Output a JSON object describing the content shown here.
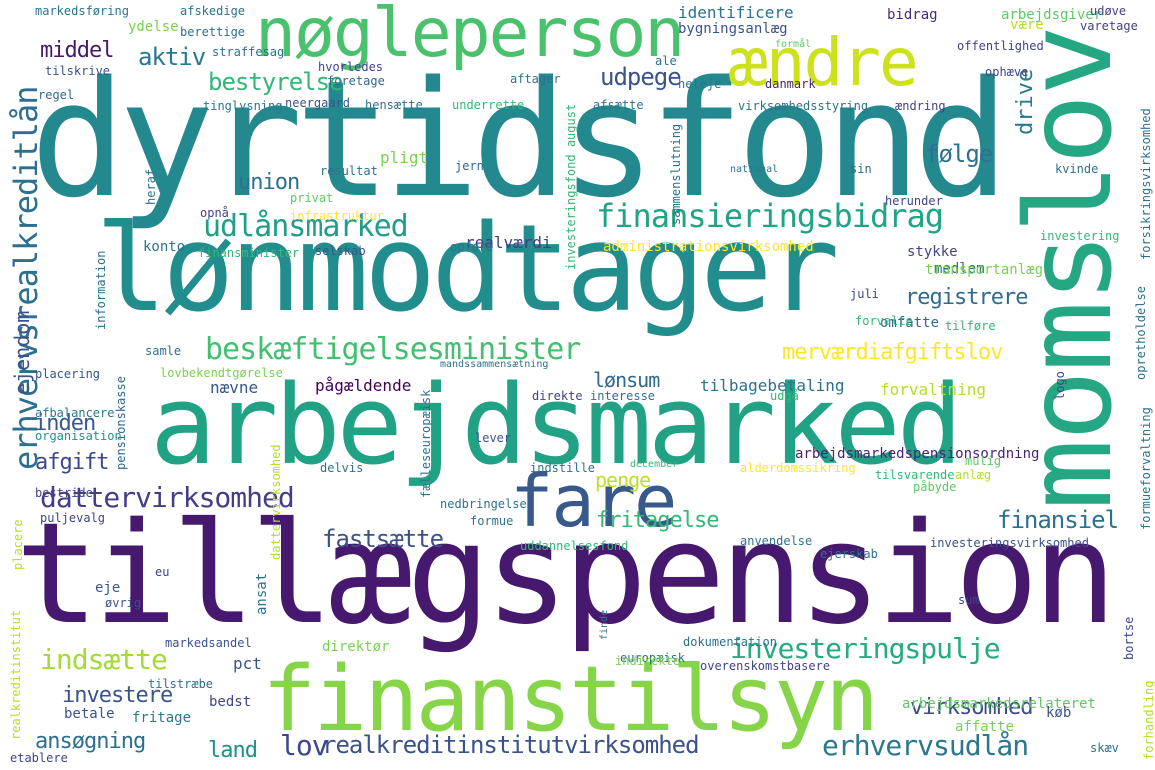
{
  "words": [
    {
      "text": "dyrtidsfond",
      "color": "#23898e"
    },
    {
      "text": "tillægspension",
      "color": "#46186e"
    },
    {
      "text": "lønmodtager",
      "color": "#228d8d"
    },
    {
      "text": "arbejdsmarked",
      "color": "#22a284"
    },
    {
      "text": "momslov",
      "color": "#26a784"
    },
    {
      "text": "finanstilsyn",
      "color": "#86d549"
    },
    {
      "text": "nøgleperson",
      "color": "#4ac16d"
    },
    {
      "text": "ændre",
      "color": "#cde11d"
    },
    {
      "text": "fare",
      "color": "#38598c"
    },
    {
      "text": "erhvervsrealkreditlån",
      "color": "#2d708e"
    },
    {
      "text": "finansieringsbidrag",
      "color": "#20a486"
    },
    {
      "text": "beskæftigelsesminister",
      "color": "#44bf70"
    },
    {
      "text": "dattervirksomhed",
      "color": "#433e85"
    },
    {
      "text": "investeringspulje",
      "color": "#25ab82"
    },
    {
      "text": "erhvervsudlån",
      "color": "#2a788e"
    },
    {
      "text": "udlånsmarked",
      "color": "#1f9e89"
    },
    {
      "text": "registrere",
      "color": "#2f6c8e"
    },
    {
      "text": "finansiel",
      "color": "#2c728e"
    },
    {
      "text": "indsætte",
      "color": "#a5db36"
    },
    {
      "text": "realkreditinstitutvirksomhed",
      "color": "#3b528b"
    },
    {
      "text": "fritagelse",
      "color": "#35b779"
    },
    {
      "text": "merværdiafgiftslov",
      "color": "#fde725"
    },
    {
      "text": "bestyrelse",
      "color": "#34b679"
    },
    {
      "text": "middel",
      "color": "#481a6c"
    },
    {
      "text": "aktiv",
      "color": "#2a788e"
    },
    {
      "text": "udpege",
      "color": "#3b528b"
    },
    {
      "text": "følge",
      "color": "#2c728e"
    },
    {
      "text": "union",
      "color": "#2c728e"
    },
    {
      "text": "afgift",
      "color": "#3e4989"
    },
    {
      "text": "fastsætte",
      "color": "#3b528b"
    },
    {
      "text": "investere",
      "color": "#39568c"
    },
    {
      "text": "ansøgning",
      "color": "#2d708e"
    },
    {
      "text": "land",
      "color": "#218f8d"
    },
    {
      "text": "lov",
      "color": "#3f4788"
    },
    {
      "text": "virksomhed",
      "color": "#3e4989"
    },
    {
      "text": "penge",
      "color": "#bddf26"
    },
    {
      "text": "lønsum",
      "color": "#31688e"
    },
    {
      "text": "inden",
      "color": "#38588c"
    },
    {
      "text": "ejendom",
      "color": "#3b528b"
    },
    {
      "text": "drive",
      "color": "#2a788e"
    },
    {
      "text": "identificere",
      "color": "#2c728e"
    },
    {
      "text": "bygningsanlæg",
      "color": "#3b528b"
    },
    {
      "text": "arbejdsmarkedspensionsordning",
      "color": "#482475"
    },
    {
      "text": "arbejdsmarkedsrelateret",
      "color": "#5ec962"
    },
    {
      "text": "pligt",
      "color": "#7ad151"
    },
    {
      "text": "realværdi",
      "color": "#433e85"
    },
    {
      "text": "konto",
      "color": "#2c728e"
    },
    {
      "text": "pct",
      "color": "#3b528b"
    },
    {
      "text": "eje",
      "color": "#38588c"
    },
    {
      "text": "nævne",
      "color": "#39568c"
    },
    {
      "text": "pågældende",
      "color": "#440154"
    },
    {
      "text": "tilbagebetaling",
      "color": "#2c728e"
    },
    {
      "text": "forvaltning",
      "color": "#b5de2b"
    },
    {
      "text": "omfatte",
      "color": "#31688e"
    },
    {
      "text": "stykke",
      "color": "#414487"
    },
    {
      "text": "medlem",
      "color": "#2c728e"
    },
    {
      "text": "transportanlæg",
      "color": "#7ad151"
    },
    {
      "text": "direktør",
      "color": "#7ad151"
    },
    {
      "text": "ansat",
      "color": "#2c728e"
    },
    {
      "text": "betale",
      "color": "#3b528b"
    },
    {
      "text": "fritage",
      "color": "#2a788e"
    },
    {
      "text": "bedst",
      "color": "#414487"
    },
    {
      "text": "dokumentation",
      "color": "#2c728e"
    },
    {
      "text": "overenskomstbasere",
      "color": "#414487"
    },
    {
      "text": "europæisk",
      "color": "#2c728e"
    },
    {
      "text": "affatte",
      "color": "#7ad151"
    },
    {
      "text": "køb",
      "color": "#3b528b"
    },
    {
      "text": "bidrag",
      "color": "#472c7a"
    },
    {
      "text": "arbejdsgiver",
      "color": "#5ec962"
    },
    {
      "text": "være",
      "color": "#b5de2b"
    },
    {
      "text": "regel",
      "color": "#31688e"
    },
    {
      "text": "tinglysning",
      "color": "#2a788e"
    },
    {
      "text": "ændring",
      "color": "#414487"
    },
    {
      "text": "information",
      "color": "#2c728e"
    },
    {
      "text": "pensionskasse",
      "color": "#31688e"
    },
    {
      "text": "organisation",
      "color": "#21918c"
    },
    {
      "text": "afbalancere",
      "color": "#2a788e"
    },
    {
      "text": "placering",
      "color": "#39568c"
    },
    {
      "text": "lovbekendtgørelse",
      "color": "#7ad151"
    },
    {
      "text": "hvorledes",
      "color": "#414487"
    },
    {
      "text": "straffesag",
      "color": "#2c728e"
    },
    {
      "text": "ydelse",
      "color": "#7ad151"
    },
    {
      "text": "markedsføring",
      "color": "#2c728e"
    },
    {
      "text": "afskedige",
      "color": "#2c728e"
    },
    {
      "text": "berettige",
      "color": "#2c728e"
    },
    {
      "text": "tilskrive",
      "color": "#3b528b"
    },
    {
      "text": "foretage",
      "color": "#31688e"
    },
    {
      "text": "aftager",
      "color": "#2c728e"
    },
    {
      "text": "heleje",
      "color": "#2c728e"
    },
    {
      "text": "danmark",
      "color": "#482475"
    },
    {
      "text": "neergaard",
      "color": "#3b528b"
    },
    {
      "text": "hensætte",
      "color": "#2c728e"
    },
    {
      "text": "underrette",
      "color": "#35b779"
    },
    {
      "text": "afsætte",
      "color": "#2c728e"
    },
    {
      "text": "virksomhedsstyring",
      "color": "#2c728e"
    },
    {
      "text": "ophæve",
      "color": "#414487"
    },
    {
      "text": "offentlighed",
      "color": "#414487"
    },
    {
      "text": "varetage",
      "color": "#414487"
    },
    {
      "text": "udøve",
      "color": "#414487"
    },
    {
      "text": "formål",
      "color": "#5ec962"
    },
    {
      "text": "ale",
      "color": "#2c728e"
    },
    {
      "text": "resultat",
      "color": "#2c728e"
    },
    {
      "text": "jern",
      "color": "#31688e"
    },
    {
      "text": "national",
      "color": "#2a788e"
    },
    {
      "text": "sin",
      "color": "#31688e"
    },
    {
      "text": "kvinde",
      "color": "#2c728e"
    },
    {
      "text": "privat",
      "color": "#5ec962"
    },
    {
      "text": "opnå",
      "color": "#414487"
    },
    {
      "text": "infrastruktur",
      "color": "#fde725"
    },
    {
      "text": "herunder",
      "color": "#414487"
    },
    {
      "text": "investering",
      "color": "#35b779"
    },
    {
      "text": "administrationsvirksomhed",
      "color": "#fde725"
    },
    {
      "text": "finansminister",
      "color": "#35b779"
    },
    {
      "text": "selskab",
      "color": "#3b528b"
    },
    {
      "text": "opføre",
      "color": "#2c728e"
    },
    {
      "text": "juli",
      "color": "#414487"
    },
    {
      "text": "forvalte",
      "color": "#35b779"
    },
    {
      "text": "tilføre",
      "color": "#35b779"
    },
    {
      "text": "samle",
      "color": "#2c728e"
    },
    {
      "text": "mandssammensætning",
      "color": "#2c728e"
    },
    {
      "text": "direkte",
      "color": "#414487"
    },
    {
      "text": "interesse",
      "color": "#2c728e"
    },
    {
      "text": "udgå",
      "color": "#35b779"
    },
    {
      "text": "lever",
      "color": "#3b528b"
    },
    {
      "text": "delvis",
      "color": "#2c728e"
    },
    {
      "text": "indstille",
      "color": "#2c728e"
    },
    {
      "text": "december",
      "color": "#35b779"
    },
    {
      "text": "alderdomssikring",
      "color": "#fde725"
    },
    {
      "text": "tilsvarende",
      "color": "#35b779"
    },
    {
      "text": "mulig",
      "color": "#5ec962"
    },
    {
      "text": "anlæg",
      "color": "#b5de2b"
    },
    {
      "text": "påbyde",
      "color": "#5ec962"
    },
    {
      "text": "bestride",
      "color": "#414487"
    },
    {
      "text": "nedbringelse",
      "color": "#2c728e"
    },
    {
      "text": "formue",
      "color": "#2c728e"
    },
    {
      "text": "fælleseuropæisk",
      "color": "#2c728e"
    },
    {
      "text": "puljevalg",
      "color": "#414487"
    },
    {
      "text": "anvendelse",
      "color": "#2c728e"
    },
    {
      "text": "ejerskab",
      "color": "#2c728e"
    },
    {
      "text": "investeringsvirksomhed",
      "color": "#3b528b"
    },
    {
      "text": "uddannelsesfond",
      "color": "#35b779"
    },
    {
      "text": "placere",
      "color": "#b5de2b"
    },
    {
      "text": "eu",
      "color": "#414487"
    },
    {
      "text": "øvrig",
      "color": "#3b528b"
    },
    {
      "text": "sum",
      "color": "#414487"
    },
    {
      "text": "markedsandel",
      "color": "#3b528b"
    },
    {
      "text": "finde",
      "color": "#2c728e"
    },
    {
      "text": "indirekte",
      "color": "#7ad151"
    },
    {
      "text": "tilstræbe",
      "color": "#2c728e"
    },
    {
      "text": "etablere",
      "color": "#414487"
    },
    {
      "text": "skæv",
      "color": "#2c728e"
    },
    {
      "text": "forhandling",
      "color": "#b5de2b"
    },
    {
      "text": "bortse",
      "color": "#414487"
    },
    {
      "text": "realkreditinstitut",
      "color": "#b5de2b"
    },
    {
      "text": "forsikringsvirksomhed",
      "color": "#2c728e"
    },
    {
      "text": "formueforvaltning",
      "color": "#2c728e"
    },
    {
      "text": "opretholdelse",
      "color": "#2c728e"
    },
    {
      "text": "investeringsfond august",
      "color": "#35b779"
    },
    {
      "text": "sammenslutning",
      "color": "#2c728e"
    },
    {
      "text": "heraf",
      "color": "#2c728e"
    },
    {
      "text": "logo",
      "color": "#414487"
    },
    {
      "text": "dattervirksomhed",
      "color": "#b5de2b"
    }
  ]
}
